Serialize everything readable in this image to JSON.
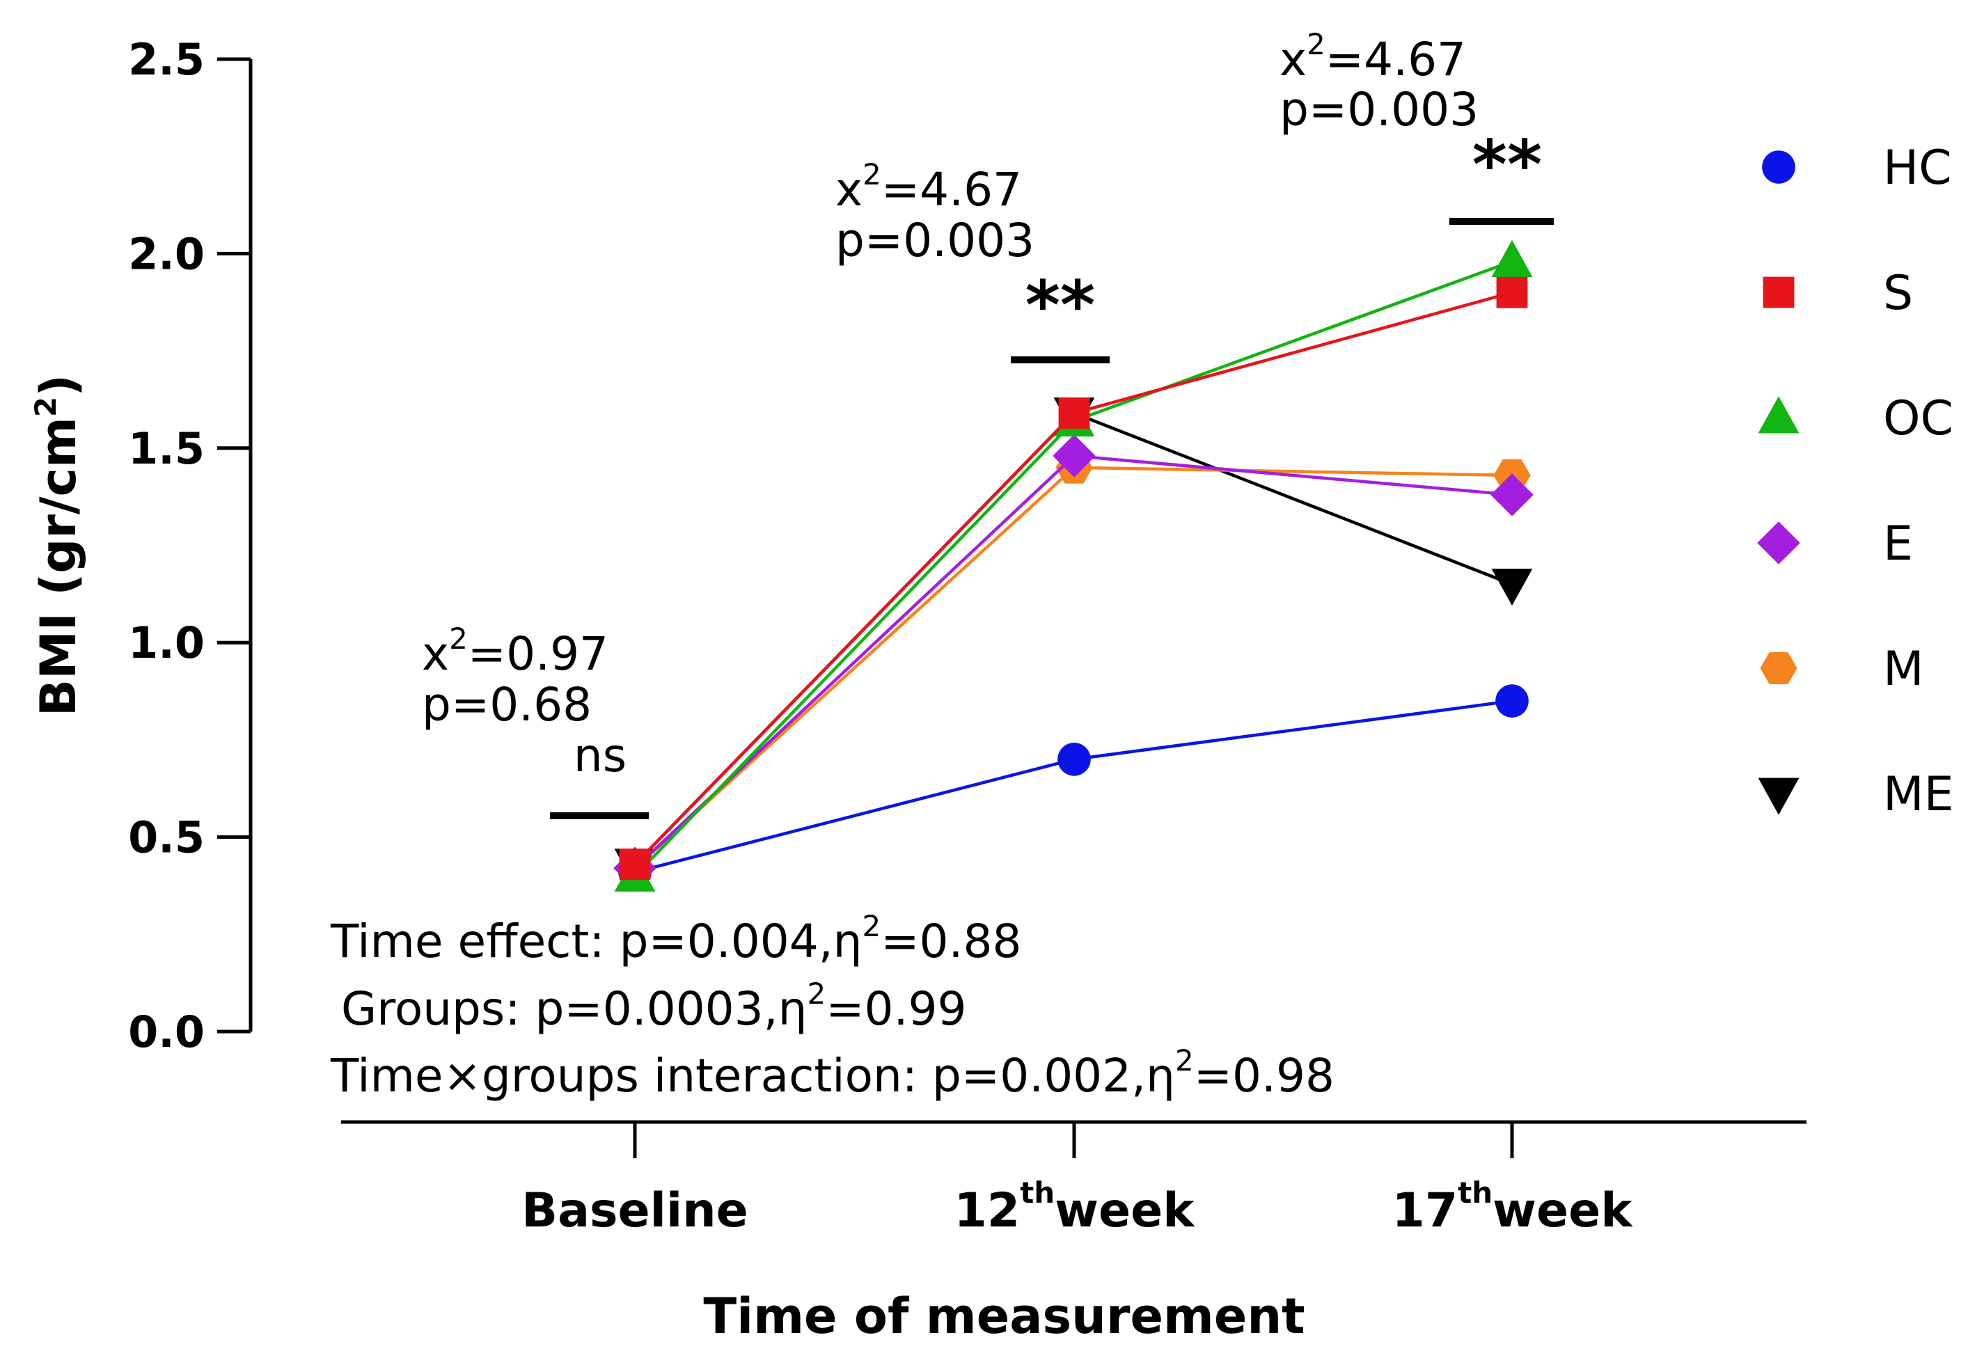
{
  "chart_data": {
    "type": "line",
    "title": "",
    "xlabel": "Time of measurement",
    "ylabel": {
      "main": "BMI (gr/cm",
      "sup": "2",
      "close": ")"
    },
    "ylim": [
      0,
      2.5
    ],
    "yticks": [
      "0.0",
      "0.5",
      "1.0",
      "1.5",
      "2.0",
      "2.5"
    ],
    "categories": [
      {
        "main": "Baseline",
        "sup": "",
        "suffix": ""
      },
      {
        "main": "12",
        "sup": "th",
        "suffix": "week"
      },
      {
        "main": "17",
        "sup": "th",
        "suffix": "week"
      }
    ],
    "series": [
      {
        "name": "HC",
        "color": "#0a14e6",
        "marker": "circle",
        "values": [
          0.41,
          0.7,
          0.85
        ]
      },
      {
        "name": "S",
        "color": "#e8141c",
        "marker": "square",
        "values": [
          0.43,
          1.59,
          1.9
        ]
      },
      {
        "name": "OC",
        "color": "#12b412",
        "marker": "triangle-up",
        "values": [
          0.4,
          1.57,
          1.98
        ]
      },
      {
        "name": "E",
        "color": "#a41ee0",
        "marker": "diamond",
        "values": [
          0.42,
          1.48,
          1.38
        ]
      },
      {
        "name": "M",
        "color": "#f5841e",
        "marker": "hexagon",
        "values": [
          0.42,
          1.45,
          1.43
        ]
      },
      {
        "name": "ME",
        "color": "#000000",
        "marker": "triangle-down",
        "values": [
          0.43,
          1.59,
          1.15
        ]
      }
    ],
    "legend_position": "right",
    "significance": [
      {
        "category": 0,
        "chi_main": "x",
        "chi_sup": "2",
        "chi_rest": "=0.97",
        "p": "p=0.68",
        "mark": "ns"
      },
      {
        "category": 1,
        "chi_main": "x",
        "chi_sup": "2",
        "chi_rest": "=4.67",
        "p": "p=0.003",
        "mark": "**"
      },
      {
        "category": 2,
        "chi_main": "x",
        "chi_sup": "2",
        "chi_rest": "=4.67",
        "p": "p=0.003",
        "mark": "**"
      }
    ],
    "stats": [
      {
        "label": "Time effect: p=0.004,η",
        "sup": "2",
        "rest": "=0.88"
      },
      {
        "label": " Groups: p=0.0003,η",
        "sup": "2",
        "rest": "=0.99"
      },
      {
        "label": "Time×groups interaction: p=0.002,η",
        "sup": "2",
        "rest": "=0.98"
      }
    ]
  }
}
